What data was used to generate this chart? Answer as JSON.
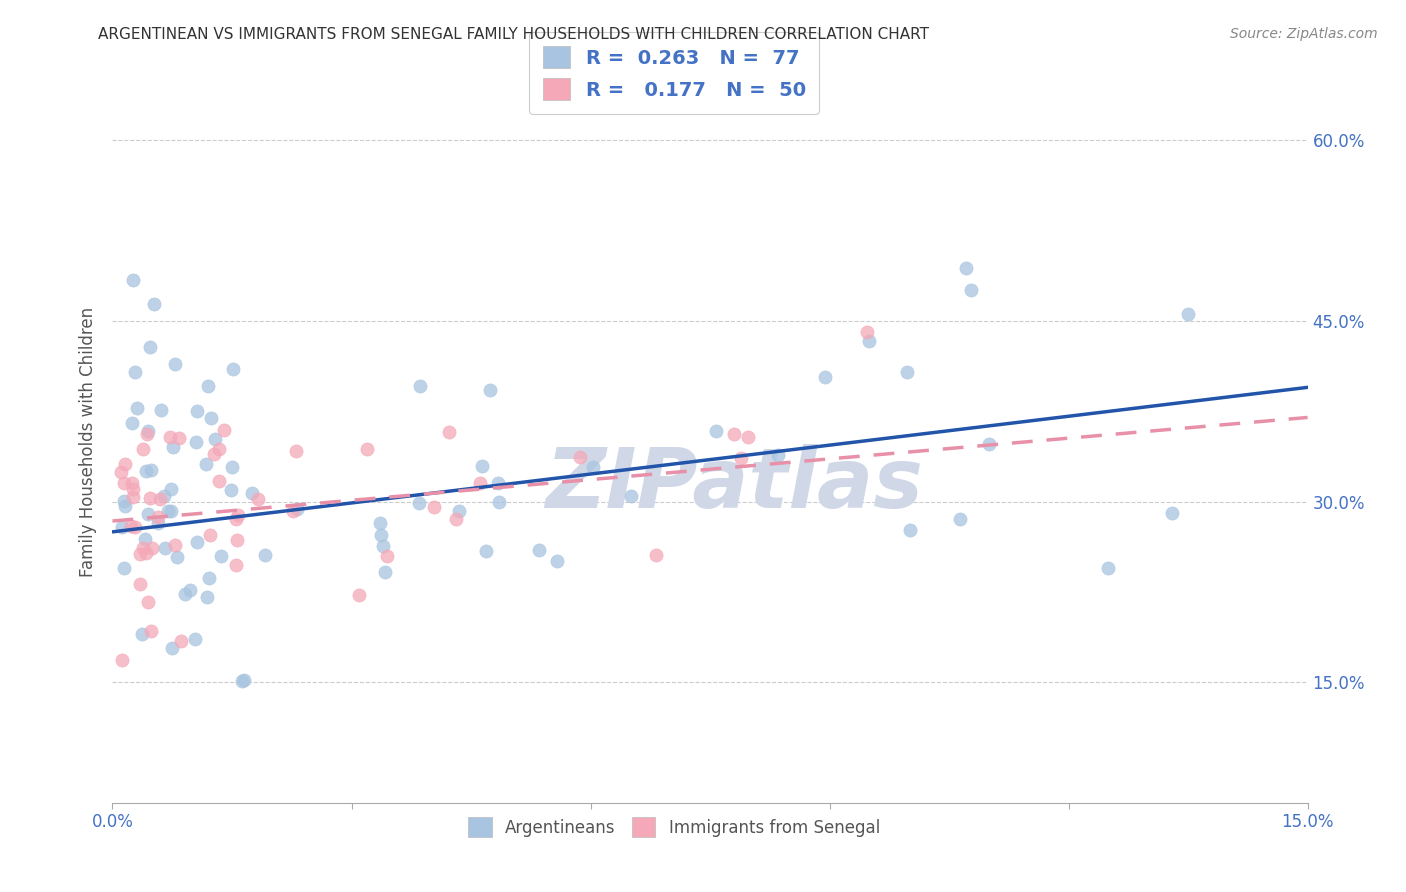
{
  "title": "ARGENTINEAN VS IMMIGRANTS FROM SENEGAL FAMILY HOUSEHOLDS WITH CHILDREN CORRELATION CHART",
  "source": "Source: ZipAtlas.com",
  "ylabel": "Family Households with Children",
  "x_min": 0.0,
  "x_max": 0.15,
  "y_min": 0.05,
  "y_max": 0.65,
  "x_tick_positions": [
    0.0,
    0.03,
    0.06,
    0.09,
    0.12,
    0.15
  ],
  "x_tick_labels": [
    "0.0%",
    "",
    "",
    "",
    "",
    "15.0%"
  ],
  "y_tick_positions": [
    0.15,
    0.3,
    0.45,
    0.6
  ],
  "y_tick_labels": [
    "15.0%",
    "30.0%",
    "45.0%",
    "60.0%"
  ],
  "legend_R1": "0.263",
  "legend_N1": "77",
  "legend_R2": "0.177",
  "legend_N2": "50",
  "color_blue": "#a8c4e0",
  "color_pink": "#f4a8b8",
  "line_blue": "#2255aa",
  "line_pink": "#e890a8",
  "watermark": "ZIPatlas",
  "watermark_color": "#d0d8e8",
  "background": "#ffffff",
  "grid_color": "#cccccc",
  "title_color": "#333333",
  "source_color": "#888888",
  "ylabel_color": "#555555",
  "tick_color_right": "#4472c4",
  "tick_color_x": "#4472c4"
}
